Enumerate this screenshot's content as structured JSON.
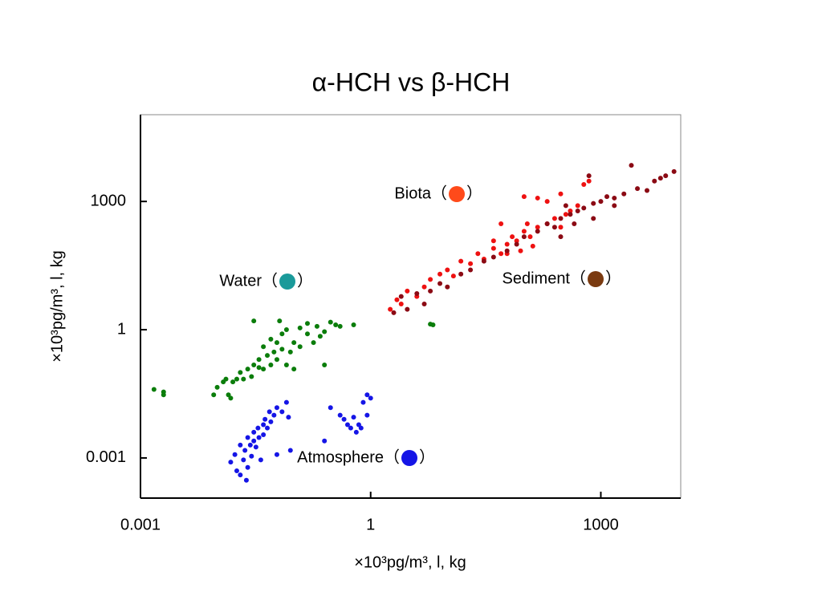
{
  "chart_data": {
    "type": "scatter",
    "title": "α-HCH vs β-HCH",
    "x_label": "×10³pg/m³, l, kg",
    "y_label": "×10³pg/m³, l, kg",
    "xscale": "log",
    "yscale": "log",
    "xlim": [
      0.001,
      11000
    ],
    "ylim": [
      0.000115,
      107000
    ],
    "xticks": [
      0.001,
      1,
      1000
    ],
    "yticks": [
      0.001,
      1,
      1000
    ],
    "legend_open": "（",
    "legend_close": "）",
    "series": [
      {
        "name": "Biota",
        "color": "#ee1111",
        "legend_color": "#ff4a1a",
        "x": [
          1.8,
          2.2,
          2.5,
          3,
          4,
          5,
          6,
          8,
          10,
          12,
          15,
          20,
          25,
          30,
          40,
          50,
          60,
          70,
          80,
          100,
          120,
          150,
          200,
          250,
          300,
          300,
          350,
          400,
          500,
          600,
          700,
          100,
          150,
          60,
          90,
          110,
          200,
          50,
          40,
          130
        ],
        "y": [
          3,
          5,
          4,
          8,
          6,
          10,
          15,
          20,
          25,
          18,
          40,
          35,
          60,
          45,
          80,
          60,
          100,
          150,
          120,
          200,
          150,
          250,
          300,
          400,
          250,
          1500,
          500,
          600,
          800,
          2500,
          3000,
          1300,
          1200,
          60,
          70,
          300,
          1000,
          300,
          120,
          90
        ]
      },
      {
        "name": "Sediment",
        "color": "#8b0a14",
        "legend_color": "#7a3a10",
        "x": [
          2,
          2.5,
          3,
          4,
          5,
          6,
          8,
          10,
          15,
          20,
          30,
          40,
          60,
          80,
          100,
          150,
          200,
          250,
          300,
          400,
          500,
          600,
          800,
          1000,
          1200,
          1500,
          2000,
          3000,
          5000,
          7000,
          9000,
          6000,
          700,
          2500,
          4000,
          300,
          350,
          450,
          1500,
          800
        ],
        "y": [
          2.5,
          6,
          3,
          7,
          4,
          8,
          12,
          10,
          20,
          25,
          40,
          50,
          70,
          100,
          150,
          200,
          300,
          250,
          400,
          500,
          600,
          700,
          900,
          1000,
          1300,
          1200,
          1500,
          2000,
          3000,
          4000,
          5000,
          3500,
          4000,
          7000,
          1800,
          150,
          800,
          300,
          800,
          400
        ]
      },
      {
        "name": "Water",
        "color": "#0b7d0b",
        "legend_color": "#1a9a9a",
        "x": [
          0.0015,
          0.002,
          0.002,
          0.009,
          0.01,
          0.012,
          0.013,
          0.014,
          0.015,
          0.016,
          0.018,
          0.02,
          0.022,
          0.025,
          0.028,
          0.03,
          0.03,
          0.035,
          0.04,
          0.04,
          0.045,
          0.05,
          0.05,
          0.055,
          0.06,
          0.06,
          0.065,
          0.07,
          0.07,
          0.08,
          0.08,
          0.09,
          0.1,
          0.12,
          0.12,
          0.15,
          0.15,
          0.18,
          0.2,
          0.22,
          0.25,
          0.25,
          0.3,
          0.35,
          0.4,
          0.6,
          6,
          6.5,
          0.1,
          0.035
        ],
        "y": [
          0.04,
          0.035,
          0.03,
          0.03,
          0.045,
          0.06,
          0.07,
          0.03,
          0.025,
          0.06,
          0.07,
          0.1,
          0.07,
          0.12,
          0.08,
          0.15,
          1.6,
          0.2,
          0.12,
          0.4,
          0.25,
          0.15,
          0.6,
          0.3,
          0.5,
          0.2,
          1.6,
          0.8,
          0.35,
          0.15,
          1.0,
          0.3,
          0.5,
          0.4,
          1.1,
          0.8,
          1.4,
          0.5,
          1.2,
          0.7,
          0.9,
          0.15,
          1.5,
          1.3,
          1.2,
          1.3,
          1.35,
          1.3,
          0.12,
          0.13
        ]
      },
      {
        "name": "Atmosphere",
        "color": "#1515e6",
        "legend_color": "#1515e6",
        "x": [
          0.015,
          0.017,
          0.018,
          0.02,
          0.02,
          0.022,
          0.023,
          0.025,
          0.025,
          0.027,
          0.028,
          0.03,
          0.03,
          0.032,
          0.034,
          0.035,
          0.037,
          0.04,
          0.04,
          0.042,
          0.045,
          0.048,
          0.05,
          0.055,
          0.06,
          0.06,
          0.07,
          0.08,
          0.085,
          0.09,
          0.25,
          0.3,
          0.4,
          0.45,
          0.5,
          0.55,
          0.6,
          0.65,
          0.7,
          0.8,
          0.9,
          1.0,
          0.9,
          0.75,
          0.024
        ],
        "y": [
          0.0008,
          0.0012,
          0.0005,
          0.0004,
          0.002,
          0.0009,
          0.0015,
          0.003,
          0.0006,
          0.002,
          0.0011,
          0.004,
          0.0025,
          0.0018,
          0.005,
          0.003,
          0.0009,
          0.006,
          0.0035,
          0.008,
          0.005,
          0.012,
          0.007,
          0.01,
          0.015,
          0.0012,
          0.012,
          0.02,
          0.009,
          0.0015,
          0.0025,
          0.015,
          0.01,
          0.008,
          0.006,
          0.005,
          0.009,
          0.004,
          0.006,
          0.02,
          0.03,
          0.025,
          0.01,
          0.005,
          0.0003
        ]
      }
    ]
  }
}
